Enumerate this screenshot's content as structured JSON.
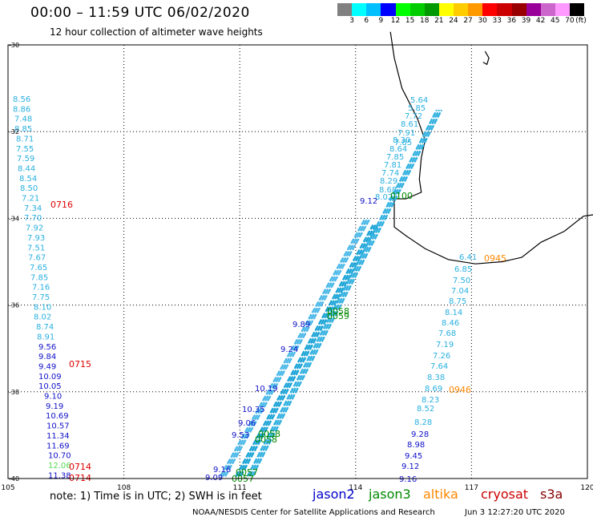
{
  "header": {
    "title": "00:00 – 11:59 UTC 06/02/2020",
    "subtitle": "12 hour collection of altimeter wave heights"
  },
  "colorbar": {
    "unit": "(ft)",
    "ticks": [
      "3",
      "6",
      "9",
      "12",
      "15",
      "18",
      "21",
      "24",
      "27",
      "30",
      "33",
      "36",
      "39",
      "42",
      "45",
      "70"
    ],
    "colors": [
      "#808080",
      "#00ffff",
      "#00bfff",
      "#0000ff",
      "#00ff00",
      "#00cc00",
      "#009900",
      "#ffff00",
      "#ffcc00",
      "#ff9900",
      "#ff0000",
      "#cc0000",
      "#990000",
      "#990099",
      "#cc66cc",
      "#ff99ff",
      "#000000"
    ]
  },
  "map": {
    "lon_range": [
      105,
      120
    ],
    "lat_range": [
      -40,
      -30
    ],
    "lon_ticks": [
      "105",
      "108",
      "111",
      "114",
      "117",
      "120"
    ],
    "lat_ticks": [
      "-30",
      "-32",
      "-34",
      "-36",
      "-38",
      "-40"
    ]
  },
  "legend": {
    "note": "note: 1) Time is in UTC; 2) SWH is in feet",
    "satellites": [
      {
        "name": "jason2",
        "color": "#0000cc"
      },
      {
        "name": "jason3",
        "color": "#008800"
      },
      {
        "name": "altika",
        "color": "#ff8800"
      },
      {
        "name": "cryosat",
        "color": "#cc0000"
      },
      {
        "name": "s3a",
        "color": "#880000"
      }
    ]
  },
  "footer": {
    "credit": "NOAA/NESDIS Center for Satellite Applications and Research",
    "timestamp": "Jun 3 12:27:20 UTC 2020"
  },
  "tracks": {
    "left_column": {
      "values": [
        "8.56",
        "8.86",
        "7.48",
        "8.85",
        "8.71",
        "7.55",
        "7.59",
        "8.44",
        "8.54",
        "8.50",
        "7.21",
        "7.34",
        "7.70",
        "7.92",
        "7.93",
        "7.51",
        "7.67",
        "7.65",
        "7.85",
        "7.16",
        "7.75",
        "8.10",
        "8.02",
        "8.74",
        "8.91",
        "9.56",
        "9.84",
        "9.49",
        "10.09",
        "10.05",
        "9.10",
        "9.19",
        "10.69",
        "10.57",
        "11.34",
        "11.69",
        "10.70",
        "12.06",
        "11.38"
      ],
      "colors": [
        "c",
        "c",
        "c",
        "c",
        "c",
        "c",
        "c",
        "c",
        "c",
        "c",
        "c",
        "c",
        "c",
        "c",
        "c",
        "c",
        "c",
        "c",
        "c",
        "c",
        "c",
        "c",
        "c",
        "c",
        "c",
        "b",
        "b",
        "b",
        "b",
        "b",
        "b",
        "b",
        "b",
        "b",
        "b",
        "b",
        "b",
        "g",
        "b"
      ]
    },
    "right_column": {
      "values": [
        "5.64",
        "5.85",
        "7.72",
        "8.61",
        "7.91",
        "7.85",
        "8.30",
        "8.64",
        "7.85",
        "7.81",
        "7.74",
        "8.29",
        "8.68",
        "8.02",
        "6.41",
        "6.85",
        "7.50",
        "7.04",
        "8.75",
        "8.14",
        "8.46",
        "7.68",
        "7.19",
        "7.26",
        "7.64",
        "8.38",
        "8.69",
        "8.23",
        "8.52",
        "8.28",
        "9.28",
        "8.98",
        "9.45",
        "9.12",
        "9.16"
      ],
      "colors": [
        "c",
        "c",
        "c",
        "c",
        "c",
        "c",
        "c",
        "c",
        "c",
        "c",
        "c",
        "c",
        "c",
        "c",
        "c",
        "c",
        "c",
        "c",
        "c",
        "c",
        "c",
        "c",
        "c",
        "c",
        "c",
        "c",
        "c",
        "c",
        "c",
        "c",
        "b",
        "b",
        "b",
        "b",
        "b"
      ]
    },
    "diag_labels": [
      "9.12",
      "9.89",
      "9.24",
      "10.19",
      "10.35",
      "9.06",
      "9.53",
      "9.16",
      "9.09"
    ],
    "time_labels": [
      {
        "text": "0716",
        "color": "#dd0000"
      },
      {
        "text": "0715",
        "color": "#dd0000"
      },
      {
        "text": "0714",
        "color": "#dd0000"
      },
      {
        "text": "0714",
        "color": "#dd0000"
      },
      {
        "text": "0100",
        "color": "#008800"
      },
      {
        "text": "0058",
        "color": "#008800"
      },
      {
        "text": "0059",
        "color": "#008800"
      },
      {
        "text": "0058",
        "color": "#008800"
      },
      {
        "text": "0058",
        "color": "#008800"
      },
      {
        "text": "0057",
        "color": "#008800"
      },
      {
        "text": "0057",
        "color": "#008800"
      },
      {
        "text": "0945",
        "color": "#ff8800"
      },
      {
        "text": "0946",
        "color": "#ff8800"
      }
    ]
  }
}
